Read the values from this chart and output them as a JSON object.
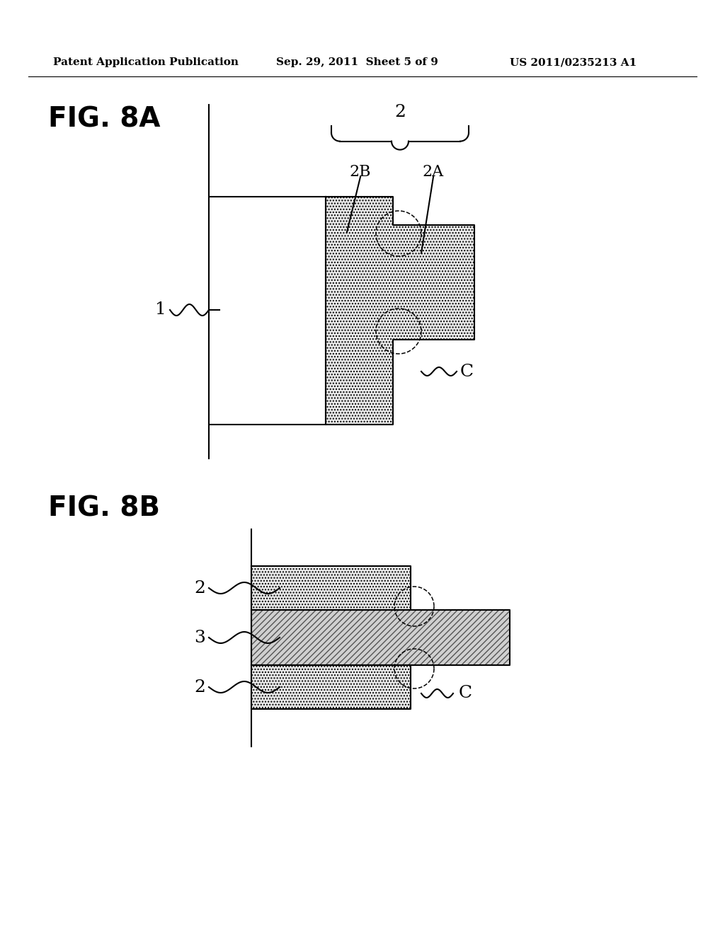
{
  "background_color": "#ffffff",
  "header_left": "Patent Application Publication",
  "header_center": "Sep. 29, 2011  Sheet 5 of 9",
  "header_right": "US 2011/0235213 A1",
  "fig8a_label": "FIG. 8A",
  "fig8b_label": "FIG. 8B",
  "line_color": "#000000",
  "dot_hatch": "....",
  "hatch_color_dots": "#000000",
  "hatch_color_lines": "#555555",
  "dot_fill_color": "#e8e8e8",
  "hatch_fill_color": "#d0d0d0"
}
